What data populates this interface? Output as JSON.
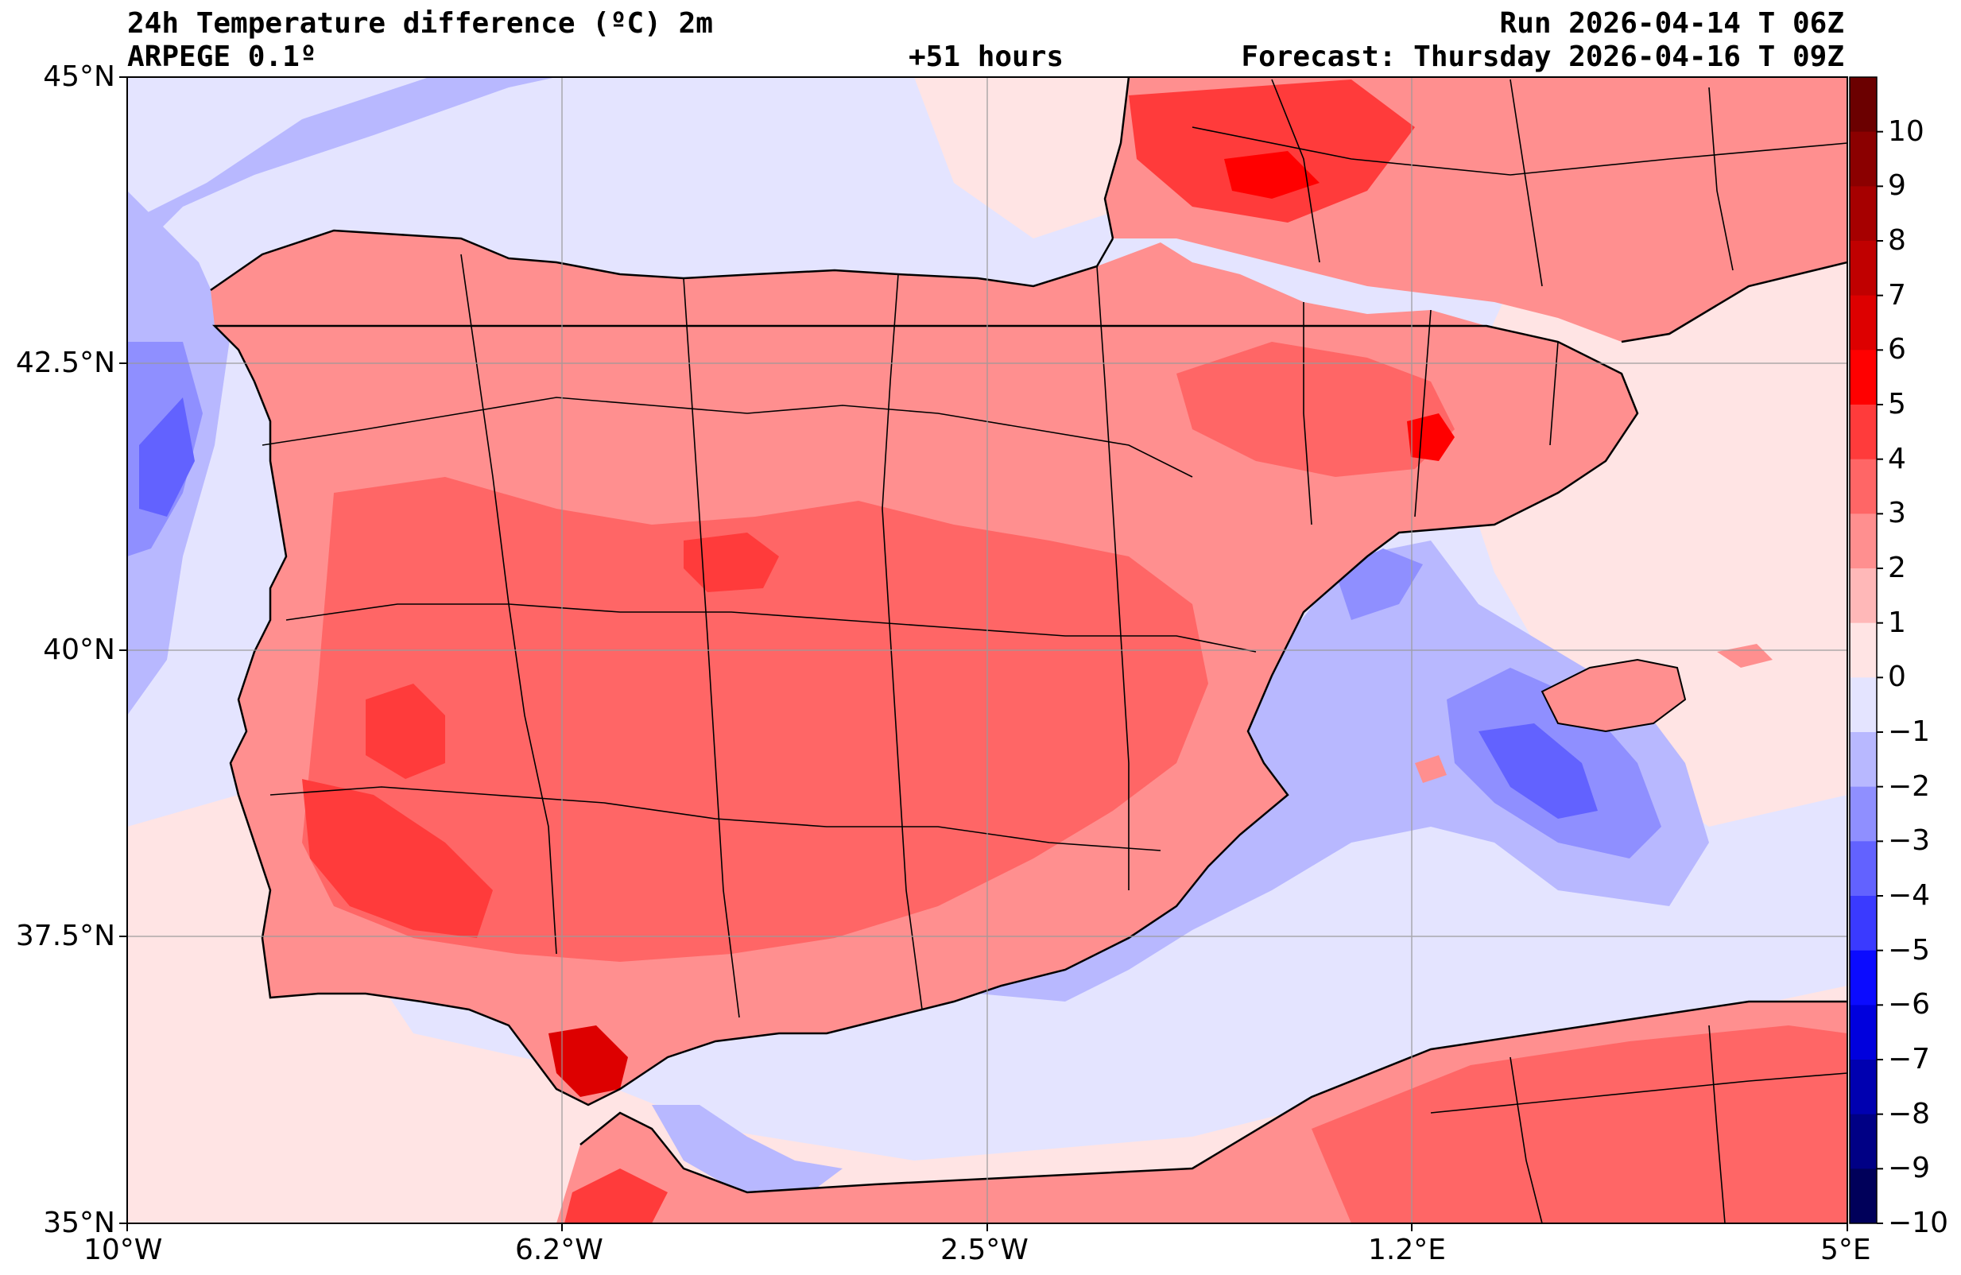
{
  "header": {
    "title": "24h Temperature difference (ºC) 2m",
    "model": "ARPEGE 0.1º",
    "lead_time": "+51 hours",
    "run": "Run 2026-04-14 T 06Z",
    "forecast": "Forecast: Thursday 2026-04-16 T 09Z"
  },
  "axes": {
    "lat_ticks": [
      "45°N",
      "42.5°N",
      "40°N",
      "37.5°N",
      "35°N"
    ],
    "lon_ticks": [
      "10°W",
      "6.2°W",
      "2.5°W",
      "1.2°E",
      "5°E"
    ]
  },
  "colorbar": {
    "labels": [
      "10",
      "9",
      "8",
      "7",
      "6",
      "5",
      "4",
      "3",
      "2",
      "1",
      "0",
      "−1",
      "−2",
      "−3",
      "−4",
      "−5",
      "−6",
      "−7",
      "−8",
      "−9",
      "−10"
    ],
    "colors": [
      "#6b0000",
      "#8b0000",
      "#a60000",
      "#c00000",
      "#dd0000",
      "#ff0000",
      "#ff3b3b",
      "#ff6666",
      "#ff8f8f",
      "#ffb8b8",
      "#ffe4e4",
      "#e4e4ff",
      "#b8b8ff",
      "#8f8fff",
      "#6262ff",
      "#3a3aff",
      "#0b0bff",
      "#0000dd",
      "#0000b0",
      "#000085",
      "#00005a"
    ]
  }
}
